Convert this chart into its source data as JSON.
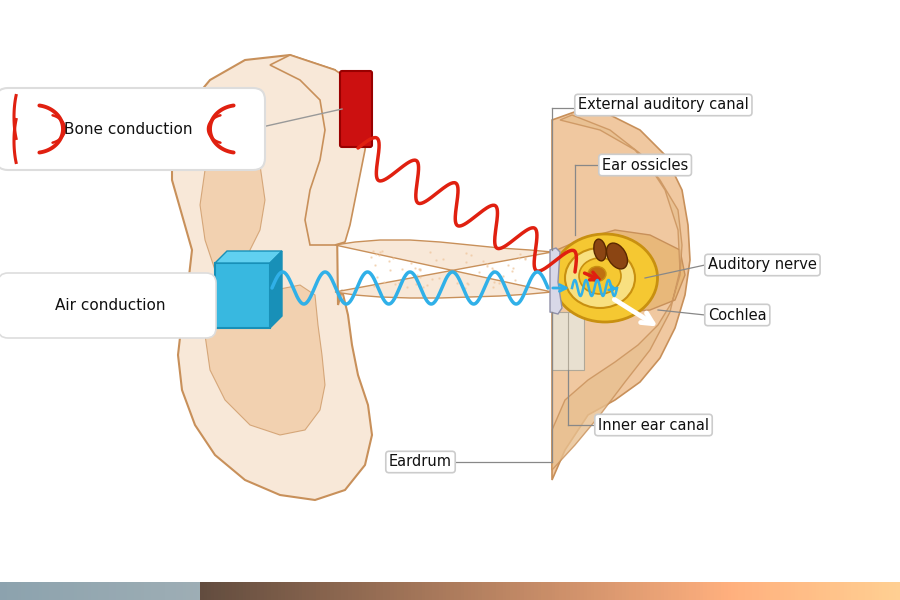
{
  "bg_color": "#ffffff",
  "ear_skin_light": "#f8e8d8",
  "ear_skin_mid": "#f0c8a0",
  "ear_skin_dark": "#e8b87a",
  "ear_outline": "#c8905a",
  "inner_yellow": "#f5c832",
  "inner_yellow_mid": "#e8b020",
  "inner_yellow_dark": "#c89010",
  "inner_yellow_light": "#f8e080",
  "ossicle_brown": "#8b4513",
  "red_wave": "#e02010",
  "blue_wave": "#30b0e8",
  "bone_device_red": "#cc1010",
  "air_box_blue": "#38b8e0",
  "air_box_blue_dark": "#1890b8",
  "white": "#ffffff",
  "label_color": "#111111",
  "line_color": "#888888",
  "bone_label": "Bone conduction",
  "air_label": "Air conduction",
  "label_external": "External auditory canal",
  "label_ossicles": "Ear ossicles",
  "label_nerve": "Auditory nerve",
  "label_cochlea": "Cochlea",
  "label_inner_canal": "Inner ear canal",
  "label_eardrum": "Eardrum",
  "bottom_bar_color1": "#b0c8d8",
  "bottom_bar_color2": "#8b6040"
}
